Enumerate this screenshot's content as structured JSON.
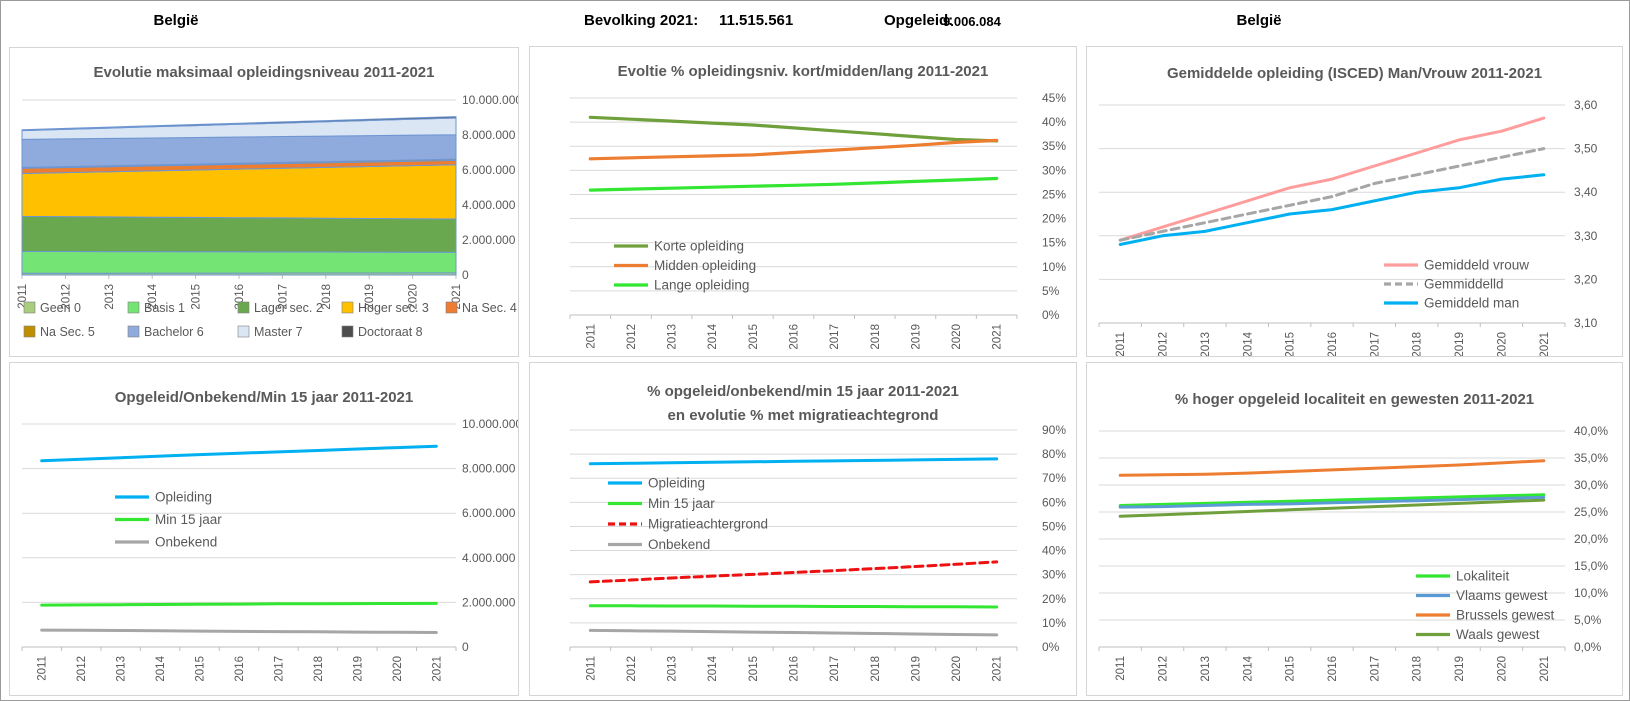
{
  "header": {
    "region_left": "België",
    "bevolking_label": "Bevolking 2021:",
    "bevolking_value": "11.515.561",
    "opgeleid_label": "Opgeleid:",
    "opgeleid_value": "9.006.084",
    "region_right": "België"
  },
  "colors": {
    "title_text": "#595959",
    "axis_text": "#595959",
    "gridline": "#d9d9d9",
    "axis_line": "#bfbfbf",
    "area_border": "#6e96d2",
    "blue": "#00b0f0",
    "bright_green": "#32e632",
    "olive_green": "#6fa03c",
    "orange": "#ed7d31",
    "gray": "#a6a6a6",
    "pink": "#ff9d9d",
    "red": "#ee1111",
    "steel_blue": "#5b9bd5"
  },
  "chart_data": [
    {
      "id": "evolutie-maximaal-opleidingsniveau",
      "type": "area",
      "stacked": true,
      "title": "Evolutie maksimaal opleidingsniveau 2011-2021",
      "categories": [
        "2011",
        "2012",
        "2013",
        "2014",
        "2015",
        "2016",
        "2017",
        "2018",
        "2019",
        "2020",
        "2021"
      ],
      "ylim": [
        0,
        10000000
      ],
      "y_ticks": [
        "0",
        "2.000.000",
        "4.000.000",
        "6.000.000",
        "8.000.000",
        "10.000.000"
      ],
      "legend_position": "bottom",
      "series": [
        {
          "name": "Geen 0",
          "color": "#a9cd7e",
          "values": [
            100000,
            102000,
            104000,
            106000,
            108000,
            110000,
            112000,
            114000,
            116000,
            118000,
            120000
          ]
        },
        {
          "name": "Basis 1",
          "color": "#74e474",
          "values": [
            1250000,
            1243000,
            1236000,
            1229000,
            1222000,
            1215000,
            1208000,
            1201000,
            1194000,
            1187000,
            1180000
          ]
        },
        {
          "name": "Lager sec. 2",
          "color": "#6aa84f",
          "values": [
            2000000,
            1990000,
            1980000,
            1970000,
            1960000,
            1950000,
            1940000,
            1930000,
            1920000,
            1910000,
            1900000
          ]
        },
        {
          "name": "Hoger sec. 3",
          "color": "#ffc000",
          "values": [
            2450000,
            2515000,
            2580000,
            2645000,
            2710000,
            2775000,
            2840000,
            2905000,
            2970000,
            3035000,
            3100000
          ]
        },
        {
          "name": "Na Sec. 4",
          "color": "#ed7d31",
          "values": [
            300000,
            295000,
            290000,
            285000,
            280000,
            275000,
            270000,
            265000,
            260000,
            255000,
            250000
          ]
        },
        {
          "name": "Na Sec. 5",
          "color": "#bf8f00",
          "values": [
            50000,
            52000,
            54000,
            56000,
            58000,
            60000,
            62000,
            64000,
            66000,
            68000,
            70000
          ]
        },
        {
          "name": "Bachelor 6",
          "color": "#8faadc",
          "values": [
            1600000,
            1580000,
            1560000,
            1540000,
            1520000,
            1500000,
            1480000,
            1460000,
            1440000,
            1420000,
            1400000
          ]
        },
        {
          "name": "Master 7",
          "color": "#dae6f4",
          "values": [
            500000,
            545000,
            590000,
            635000,
            680000,
            725000,
            770000,
            815000,
            860000,
            905000,
            950000
          ]
        },
        {
          "name": "Doctoraat 8",
          "color": "#4d4d4d",
          "values": [
            50000,
            53000,
            56000,
            59000,
            62000,
            65000,
            68000,
            71000,
            74000,
            77000,
            80000
          ]
        }
      ]
    },
    {
      "id": "pct-opleidingsniveau-kort-midden-lang",
      "type": "line",
      "title": "Evoltie % opleidingsniv. kort/midden/lang 2011-2021",
      "categories": [
        "2011",
        "2012",
        "2013",
        "2014",
        "2015",
        "2016",
        "2017",
        "2018",
        "2019",
        "2020",
        "2021"
      ],
      "ylim": [
        0,
        45
      ],
      "y_ticks": [
        "0%",
        "5%",
        "10%",
        "15%",
        "20%",
        "25%",
        "30%",
        "35%",
        "40%",
        "45%"
      ],
      "legend_position": "inside-left",
      "series": [
        {
          "name": "Korte opleiding",
          "color": "#6fa03c",
          "values": [
            41.0,
            40.6,
            40.2,
            39.8,
            39.4,
            38.8,
            38.2,
            37.6,
            37.0,
            36.4,
            36.1
          ]
        },
        {
          "name": "Midden opleiding",
          "color": "#ed7d31",
          "values": [
            32.4,
            32.6,
            32.8,
            33.0,
            33.2,
            33.7,
            34.2,
            34.7,
            35.2,
            35.8,
            36.2
          ]
        },
        {
          "name": "Lange opleiding",
          "color": "#32e632",
          "values": [
            25.9,
            26.1,
            26.3,
            26.5,
            26.7,
            26.9,
            27.1,
            27.4,
            27.7,
            28.0,
            28.3
          ]
        }
      ]
    },
    {
      "id": "gemiddelde-opleiding-isced",
      "type": "line",
      "title": "Gemiddelde opleiding (ISCED) Man/Vrouw 2011-2021",
      "categories": [
        "2011",
        "2012",
        "2013",
        "2014",
        "2015",
        "2016",
        "2017",
        "2018",
        "2019",
        "2020",
        "2021"
      ],
      "ylim": [
        3.1,
        3.6
      ],
      "y_ticks": [
        "3,10",
        "3,20",
        "3,30",
        "3,40",
        "3,50",
        "3,60"
      ],
      "legend_position": "inside-bottom-right",
      "series": [
        {
          "name": "Gemiddeld vrouw",
          "color": "#ff9d9d",
          "values": [
            3.29,
            3.32,
            3.35,
            3.38,
            3.41,
            3.43,
            3.46,
            3.49,
            3.52,
            3.54,
            3.57
          ]
        },
        {
          "name": "Gemmiddelld",
          "color": "#a6a6a6",
          "dash": true,
          "values": [
            3.29,
            3.31,
            3.33,
            3.35,
            3.37,
            3.39,
            3.42,
            3.44,
            3.46,
            3.48,
            3.5
          ]
        },
        {
          "name": "Gemiddeld man",
          "color": "#00b0f0",
          "values": [
            3.28,
            3.3,
            3.31,
            3.33,
            3.35,
            3.36,
            3.38,
            3.4,
            3.41,
            3.43,
            3.44
          ]
        }
      ]
    },
    {
      "id": "opgeleid-onbekend-min15",
      "type": "line",
      "title": "Opgeleid/Onbekend/Min 15 jaar 2011-2021",
      "categories": [
        "2011",
        "2012",
        "2013",
        "2014",
        "2015",
        "2016",
        "2017",
        "2018",
        "2019",
        "2020",
        "2021"
      ],
      "ylim": [
        0,
        10000000
      ],
      "y_ticks": [
        "0",
        "2.000.000",
        "4.000.000",
        "6.000.000",
        "8.000.000",
        "10.000.000"
      ],
      "legend_position": "inside-left",
      "series": [
        {
          "name": "Opleiding",
          "color": "#00b0f0",
          "values": [
            8350000,
            8420000,
            8490000,
            8560000,
            8630000,
            8690000,
            8750000,
            8810000,
            8880000,
            8940000,
            9006084
          ]
        },
        {
          "name": "Min 15 jaar",
          "color": "#32e632",
          "values": [
            1880000,
            1890000,
            1895000,
            1905000,
            1915000,
            1925000,
            1935000,
            1940000,
            1945000,
            1950000,
            1955000
          ]
        },
        {
          "name": "Onbekend",
          "color": "#a6a6a6",
          "values": [
            760000,
            750000,
            740000,
            730000,
            715000,
            700000,
            690000,
            680000,
            670000,
            660000,
            650000
          ]
        }
      ]
    },
    {
      "id": "pct-opgeleid-migratieachtergrond",
      "type": "line",
      "title": "% opgeleid/onbekend/min 15 jaar 2011-2021",
      "title2": "en evolutie % met migratieachtegrond",
      "categories": [
        "2011",
        "2012",
        "2013",
        "2014",
        "2015",
        "2016",
        "2017",
        "2018",
        "2019",
        "2020",
        "2021"
      ],
      "ylim": [
        0,
        90
      ],
      "y_ticks": [
        "0%",
        "10%",
        "20%",
        "30%",
        "40%",
        "50%",
        "60%",
        "70%",
        "80%",
        "90%"
      ],
      "legend_position": "inside-left",
      "series": [
        {
          "name": "Opleiding",
          "color": "#00b0f0",
          "values": [
            76.0,
            76.2,
            76.4,
            76.6,
            76.8,
            77.0,
            77.2,
            77.4,
            77.6,
            77.8,
            78.0
          ]
        },
        {
          "name": "Min 15 jaar",
          "color": "#32e632",
          "values": [
            17.1,
            17.1,
            17.0,
            17.0,
            16.9,
            16.9,
            16.8,
            16.8,
            16.7,
            16.7,
            16.6
          ]
        },
        {
          "name": "Migratieachtergrond",
          "color": "#ee1111",
          "dash": true,
          "values": [
            27.0,
            27.8,
            28.6,
            29.4,
            30.1,
            30.9,
            31.7,
            32.5,
            33.4,
            34.3,
            35.3
          ]
        },
        {
          "name": "Onbekend",
          "color": "#a6a6a6",
          "values": [
            6.9,
            6.7,
            6.6,
            6.4,
            6.2,
            6.0,
            5.8,
            5.6,
            5.4,
            5.2,
            5.0
          ]
        }
      ]
    },
    {
      "id": "pct-hoger-opgeleid-gewesten",
      "type": "line",
      "title": "% hoger opgeleid localiteit en gewesten 2011-2021",
      "categories": [
        "2011",
        "2012",
        "2013",
        "2014",
        "2015",
        "2016",
        "2017",
        "2018",
        "2019",
        "2020",
        "2021"
      ],
      "ylim": [
        0,
        40
      ],
      "y_ticks": [
        "0,0%",
        "5,0%",
        "10,0%",
        "15,0%",
        "20,0%",
        "25,0%",
        "30,0%",
        "35,0%",
        "40,0%"
      ],
      "legend_position": "inside-bottom-right",
      "series": [
        {
          "name": "Lokaliteit",
          "color": "#32e632",
          "values": [
            26.2,
            26.4,
            26.6,
            26.8,
            27.0,
            27.2,
            27.4,
            27.6,
            27.8,
            28.0,
            28.2
          ]
        },
        {
          "name": "Vlaams gewest",
          "color": "#5b9bd5",
          "values": [
            25.9,
            26.0,
            26.2,
            26.4,
            26.5,
            26.7,
            26.9,
            27.1,
            27.3,
            27.5,
            27.7
          ]
        },
        {
          "name": "Brussels gewest",
          "color": "#ed7d31",
          "values": [
            31.8,
            31.9,
            32.0,
            32.2,
            32.5,
            32.8,
            33.1,
            33.4,
            33.7,
            34.1,
            34.5
          ]
        },
        {
          "name": "Waals gewest",
          "color": "#6fa03c",
          "values": [
            24.2,
            24.5,
            24.8,
            25.1,
            25.4,
            25.7,
            26.0,
            26.3,
            26.6,
            26.9,
            27.2
          ]
        }
      ]
    }
  ]
}
